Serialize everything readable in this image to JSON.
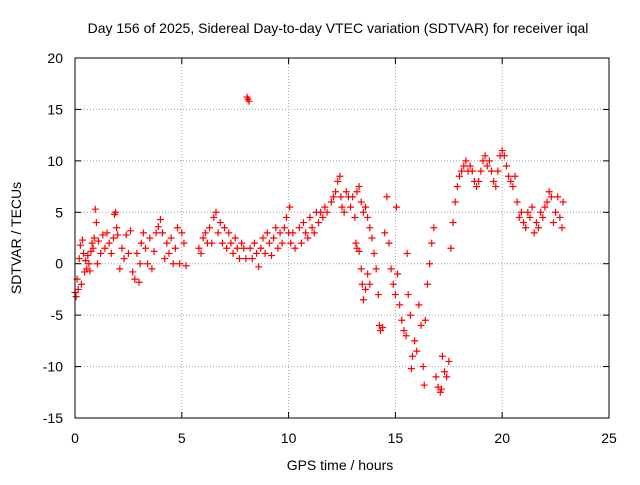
{
  "chart_data": {
    "type": "scatter",
    "title": "Day 156 of 2025, Sidereal Day-to-day VTEC variation (SDTVAR) for receiver iqal",
    "xlabel": "GPS time / hours",
    "ylabel": "SDTVAR / TECUs",
    "xlim": [
      0,
      25
    ],
    "ylim": [
      -15,
      20
    ],
    "xticks": [
      "0",
      "5",
      "10",
      "15",
      "20",
      "25"
    ],
    "yticks": [
      "-15",
      "-10",
      "-5",
      "0",
      "5",
      "10",
      "15",
      "20"
    ],
    "grid": true,
    "marker": "+",
    "color": "#ff0000",
    "series": [
      {
        "name": "SDTVAR",
        "points": [
          [
            0.0,
            -2.8
          ],
          [
            0.05,
            -3.2
          ],
          [
            0.1,
            -1.5
          ],
          [
            0.15,
            -2.5
          ],
          [
            0.2,
            0.5
          ],
          [
            0.25,
            1.8
          ],
          [
            0.3,
            -2.0
          ],
          [
            0.35,
            2.3
          ],
          [
            0.4,
            1.0
          ],
          [
            0.45,
            -0.8
          ],
          [
            0.5,
            0.3
          ],
          [
            0.55,
            -0.5
          ],
          [
            0.6,
            0.8
          ],
          [
            0.65,
            0.0
          ],
          [
            0.7,
            -0.7
          ],
          [
            0.75,
            1.2
          ],
          [
            0.8,
            2.0
          ],
          [
            0.85,
            1.5
          ],
          [
            0.9,
            2.5
          ],
          [
            0.95,
            5.3
          ],
          [
            1.0,
            4.0
          ],
          [
            1.05,
            0.0
          ],
          [
            1.1,
            2.2
          ],
          [
            1.2,
            1.0
          ],
          [
            1.3,
            2.8
          ],
          [
            1.4,
            1.5
          ],
          [
            1.5,
            3.0
          ],
          [
            1.6,
            2.0
          ],
          [
            1.7,
            1.0
          ],
          [
            1.8,
            2.5
          ],
          [
            1.85,
            4.8
          ],
          [
            1.9,
            5.0
          ],
          [
            1.95,
            3.5
          ],
          [
            2.0,
            2.8
          ],
          [
            2.1,
            -0.5
          ],
          [
            2.2,
            1.5
          ],
          [
            2.3,
            0.5
          ],
          [
            2.4,
            2.8
          ],
          [
            2.5,
            1.0
          ],
          [
            2.6,
            3.2
          ],
          [
            2.7,
            -0.8
          ],
          [
            2.8,
            -1.5
          ],
          [
            2.9,
            1.0
          ],
          [
            3.0,
            -1.8
          ],
          [
            3.05,
            0.0
          ],
          [
            3.1,
            2.0
          ],
          [
            3.2,
            3.0
          ],
          [
            3.3,
            1.5
          ],
          [
            3.4,
            0.0
          ],
          [
            3.5,
            2.5
          ],
          [
            3.6,
            -0.5
          ],
          [
            3.7,
            1.2
          ],
          [
            3.8,
            3.0
          ],
          [
            3.9,
            3.6
          ],
          [
            4.0,
            4.3
          ],
          [
            4.1,
            3.0
          ],
          [
            4.2,
            0.5
          ],
          [
            4.3,
            2.0
          ],
          [
            4.4,
            1.0
          ],
          [
            4.5,
            2.5
          ],
          [
            4.6,
            0.0
          ],
          [
            4.7,
            1.5
          ],
          [
            4.8,
            3.5
          ],
          [
            4.9,
            0.0
          ],
          [
            5.0,
            3.0
          ],
          [
            5.1,
            2.0
          ],
          [
            5.2,
            -0.2
          ],
          [
            5.8,
            1.5
          ],
          [
            5.9,
            1.0
          ],
          [
            6.0,
            2.5
          ],
          [
            6.1,
            3.0
          ],
          [
            6.2,
            2.0
          ],
          [
            6.3,
            3.5
          ],
          [
            6.4,
            2.0
          ],
          [
            6.5,
            4.5
          ],
          [
            6.6,
            5.0
          ],
          [
            6.7,
            3.0
          ],
          [
            6.8,
            4.0
          ],
          [
            6.9,
            2.0
          ],
          [
            7.0,
            3.5
          ],
          [
            7.1,
            1.5
          ],
          [
            7.2,
            3.0
          ],
          [
            7.3,
            2.0
          ],
          [
            7.4,
            1.0
          ],
          [
            7.5,
            2.5
          ],
          [
            7.6,
            1.5
          ],
          [
            7.7,
            0.5
          ],
          [
            7.8,
            2.0
          ],
          [
            7.9,
            1.5
          ],
          [
            8.0,
            0.5
          ],
          [
            8.05,
            16.2
          ],
          [
            8.1,
            16.0
          ],
          [
            8.15,
            15.8
          ],
          [
            8.2,
            1.5
          ],
          [
            8.3,
            0.5
          ],
          [
            8.4,
            2.0
          ],
          [
            8.5,
            1.0
          ],
          [
            8.6,
            -0.3
          ],
          [
            8.7,
            1.5
          ],
          [
            8.8,
            2.5
          ],
          [
            8.9,
            1.0
          ],
          [
            9.0,
            3.0
          ],
          [
            9.1,
            2.0
          ],
          [
            9.2,
            0.8
          ],
          [
            9.3,
            2.5
          ],
          [
            9.4,
            3.5
          ],
          [
            9.5,
            1.5
          ],
          [
            9.6,
            3.0
          ],
          [
            9.7,
            2.0
          ],
          [
            9.8,
            3.5
          ],
          [
            9.9,
            4.5
          ],
          [
            10.0,
            3.0
          ],
          [
            10.05,
            5.5
          ],
          [
            10.1,
            2.0
          ],
          [
            10.2,
            3.0
          ],
          [
            10.3,
            1.5
          ],
          [
            10.5,
            3.5
          ],
          [
            10.6,
            2.0
          ],
          [
            10.7,
            4.0
          ],
          [
            10.8,
            3.0
          ],
          [
            10.9,
            2.5
          ],
          [
            11.0,
            4.5
          ],
          [
            11.1,
            3.5
          ],
          [
            11.2,
            3.0
          ],
          [
            11.3,
            5.0
          ],
          [
            11.4,
            4.0
          ],
          [
            11.5,
            5.0
          ],
          [
            11.6,
            4.5
          ],
          [
            11.7,
            5.5
          ],
          [
            11.8,
            5.0
          ],
          [
            12.0,
            6.0
          ],
          [
            12.1,
            6.5
          ],
          [
            12.2,
            7.0
          ],
          [
            12.3,
            8.0
          ],
          [
            12.4,
            8.5
          ],
          [
            12.45,
            6.5
          ],
          [
            12.5,
            5.5
          ],
          [
            12.6,
            5.0
          ],
          [
            12.7,
            7.0
          ],
          [
            12.8,
            6.5
          ],
          [
            12.9,
            5.5
          ],
          [
            13.0,
            6.5
          ],
          [
            13.1,
            4.5
          ],
          [
            13.15,
            2.0
          ],
          [
            13.2,
            1.5
          ],
          [
            13.3,
            1.2
          ],
          [
            13.4,
            -0.5
          ],
          [
            13.45,
            -2.0
          ],
          [
            13.5,
            -3.5
          ],
          [
            13.6,
            -2.5
          ],
          [
            13.7,
            -1.0
          ],
          [
            13.8,
            -2.0
          ],
          [
            13.2,
            7.0
          ],
          [
            13.3,
            7.5
          ],
          [
            13.4,
            6.0
          ],
          [
            13.5,
            5.0
          ],
          [
            13.6,
            5.5
          ],
          [
            13.7,
            4.5
          ],
          [
            13.8,
            3.5
          ],
          [
            13.9,
            2.5
          ],
          [
            14.0,
            1.0
          ],
          [
            14.1,
            -0.5
          ],
          [
            14.2,
            -3.0
          ],
          [
            14.25,
            -6.0
          ],
          [
            14.3,
            -6.5
          ],
          [
            14.4,
            -6.2
          ],
          [
            14.5,
            3.0
          ],
          [
            14.6,
            6.5
          ],
          [
            14.7,
            2.0
          ],
          [
            14.8,
            -0.5
          ],
          [
            14.9,
            -2.0
          ],
          [
            15.0,
            -3.0
          ],
          [
            15.05,
            5.5
          ],
          [
            15.1,
            -1.0
          ],
          [
            15.2,
            -4.0
          ],
          [
            15.3,
            -5.5
          ],
          [
            15.4,
            -6.5
          ],
          [
            15.5,
            -7.0
          ],
          [
            15.55,
            1.0
          ],
          [
            15.6,
            -3.0
          ],
          [
            15.7,
            -5.0
          ],
          [
            15.75,
            -10.2
          ],
          [
            15.8,
            -9.0
          ],
          [
            15.9,
            -7.5
          ],
          [
            16.0,
            -8.5
          ],
          [
            16.1,
            -4.0
          ],
          [
            16.2,
            -6.0
          ],
          [
            16.3,
            -10.0
          ],
          [
            16.35,
            -11.8
          ],
          [
            16.4,
            -5.5
          ],
          [
            16.5,
            -2.0
          ],
          [
            16.6,
            0.0
          ],
          [
            16.7,
            2.0
          ],
          [
            16.8,
            3.5
          ],
          [
            16.9,
            -11.0
          ],
          [
            17.0,
            -12.0
          ],
          [
            17.1,
            -12.5
          ],
          [
            17.15,
            -12.2
          ],
          [
            17.2,
            -9.0
          ],
          [
            17.3,
            -10.5
          ],
          [
            17.4,
            -11.0
          ],
          [
            17.5,
            -9.5
          ],
          [
            17.6,
            1.5
          ],
          [
            17.7,
            4.0
          ],
          [
            17.8,
            6.0
          ],
          [
            17.9,
            7.5
          ],
          [
            18.0,
            8.5
          ],
          [
            18.1,
            9.0
          ],
          [
            18.2,
            9.5
          ],
          [
            18.3,
            10.0
          ],
          [
            18.4,
            9.0
          ],
          [
            18.5,
            9.5
          ],
          [
            18.6,
            9.0
          ],
          [
            18.7,
            8.0
          ],
          [
            18.8,
            7.5
          ],
          [
            18.9,
            8.0
          ],
          [
            19.0,
            9.0
          ],
          [
            19.1,
            10.0
          ],
          [
            19.2,
            10.5
          ],
          [
            19.3,
            9.5
          ],
          [
            19.4,
            10.0
          ],
          [
            19.5,
            9.0
          ],
          [
            19.6,
            8.0
          ],
          [
            19.7,
            7.5
          ],
          [
            19.8,
            9.0
          ],
          [
            19.9,
            10.5
          ],
          [
            20.0,
            11.0
          ],
          [
            20.1,
            10.5
          ],
          [
            20.2,
            9.5
          ],
          [
            20.3,
            8.5
          ],
          [
            20.4,
            8.0
          ],
          [
            20.5,
            7.5
          ],
          [
            20.6,
            8.5
          ],
          [
            20.7,
            6.0
          ],
          [
            20.8,
            4.5
          ],
          [
            20.9,
            5.0
          ],
          [
            21.0,
            4.0
          ],
          [
            21.1,
            3.5
          ],
          [
            21.2,
            5.0
          ],
          [
            21.3,
            4.5
          ],
          [
            21.4,
            5.5
          ],
          [
            21.5,
            3.0
          ],
          [
            21.6,
            4.0
          ],
          [
            21.7,
            3.5
          ],
          [
            21.8,
            5.0
          ],
          [
            21.9,
            4.5
          ],
          [
            22.0,
            5.5
          ],
          [
            22.1,
            6.0
          ],
          [
            22.2,
            7.0
          ],
          [
            22.3,
            6.5
          ],
          [
            22.4,
            4.0
          ],
          [
            22.5,
            5.0
          ],
          [
            22.6,
            6.5
          ],
          [
            22.7,
            4.5
          ],
          [
            22.8,
            3.5
          ],
          [
            22.85,
            6.0
          ]
        ]
      }
    ]
  }
}
